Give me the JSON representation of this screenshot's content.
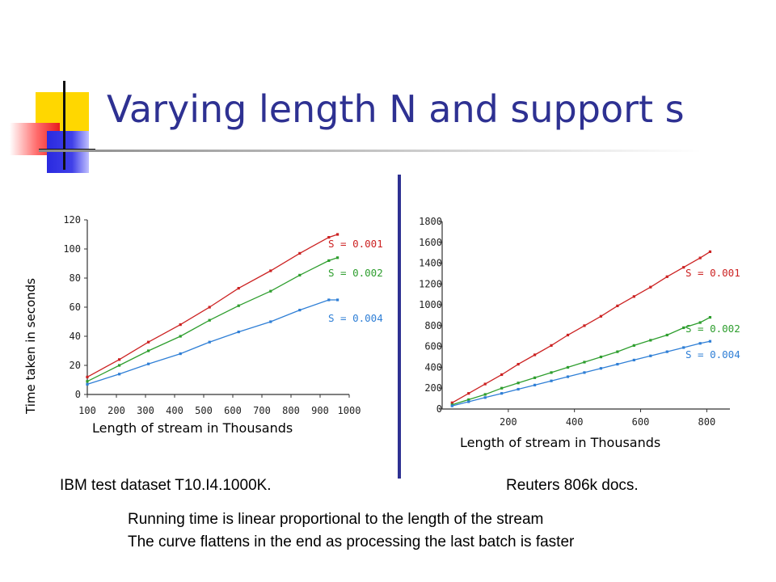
{
  "slide": {
    "title": "Varying length N and support s",
    "left_caption": "IBM test dataset T10.I4.1000K.",
    "right_caption": "Reuters 806k docs.",
    "notes": [
      "Running time is linear proportional to the length of the stream",
      "The curve flattens in the end as processing the last batch is faster"
    ]
  },
  "colors": {
    "title": "#2e3192",
    "s001": "#cc2222",
    "s002": "#2e9e2e",
    "s004": "#2f7fd6"
  },
  "chart_data": [
    {
      "type": "line",
      "title": "",
      "xlabel": "Length of stream in Thousands",
      "ylabel": "Time taken in seconds",
      "xlim": [
        100,
        1000
      ],
      "ylim": [
        0,
        120
      ],
      "xticks": [
        100,
        200,
        300,
        400,
        500,
        600,
        700,
        800,
        900,
        1000
      ],
      "yticks": [
        0,
        20,
        40,
        60,
        80,
        100,
        120
      ],
      "grid": false,
      "series": [
        {
          "name": "S = 0.001",
          "color": "#cc2222",
          "x": [
            100,
            210,
            310,
            420,
            520,
            620,
            730,
            830,
            930,
            960
          ],
          "y": [
            12,
            24,
            36,
            48,
            60,
            73,
            85,
            97,
            108,
            110
          ]
        },
        {
          "name": "S = 0.002",
          "color": "#2e9e2e",
          "x": [
            100,
            210,
            310,
            420,
            520,
            620,
            730,
            830,
            930,
            960
          ],
          "y": [
            9,
            20,
            30,
            40,
            51,
            61,
            71,
            82,
            92,
            94
          ]
        },
        {
          "name": "S = 0.004",
          "color": "#2f7fd6",
          "x": [
            100,
            210,
            310,
            420,
            520,
            620,
            730,
            830,
            930,
            960
          ],
          "y": [
            7,
            14,
            21,
            28,
            36,
            43,
            50,
            58,
            65,
            65
          ]
        }
      ]
    },
    {
      "type": "line",
      "title": "",
      "xlabel": "Length of stream in Thousands",
      "ylabel": "",
      "xlim": [
        0,
        870
      ],
      "ylim": [
        0,
        1800
      ],
      "xticks": [
        200,
        400,
        600,
        800
      ],
      "yticks": [
        0,
        200,
        400,
        600,
        800,
        1000,
        1200,
        1400,
        1600,
        1800
      ],
      "grid": false,
      "series": [
        {
          "name": "S = 0.001",
          "color": "#cc2222",
          "x": [
            30,
            80,
            130,
            180,
            230,
            280,
            330,
            380,
            430,
            480,
            530,
            580,
            630,
            680,
            730,
            780,
            810
          ],
          "y": [
            60,
            150,
            240,
            330,
            430,
            520,
            610,
            710,
            800,
            890,
            990,
            1080,
            1170,
            1270,
            1360,
            1450,
            1510
          ]
        },
        {
          "name": "S = 0.002",
          "color": "#2e9e2e",
          "x": [
            30,
            80,
            130,
            180,
            230,
            280,
            330,
            380,
            430,
            480,
            530,
            580,
            630,
            680,
            730,
            780,
            810
          ],
          "y": [
            40,
            90,
            140,
            200,
            250,
            300,
            350,
            400,
            450,
            500,
            550,
            610,
            660,
            710,
            780,
            830,
            880
          ]
        },
        {
          "name": "S = 0.004",
          "color": "#2f7fd6",
          "x": [
            30,
            80,
            130,
            180,
            230,
            280,
            330,
            380,
            430,
            480,
            530,
            580,
            630,
            680,
            730,
            780,
            810
          ],
          "y": [
            30,
            70,
            110,
            150,
            190,
            230,
            270,
            310,
            350,
            390,
            430,
            470,
            510,
            550,
            590,
            630,
            650
          ]
        }
      ]
    }
  ]
}
